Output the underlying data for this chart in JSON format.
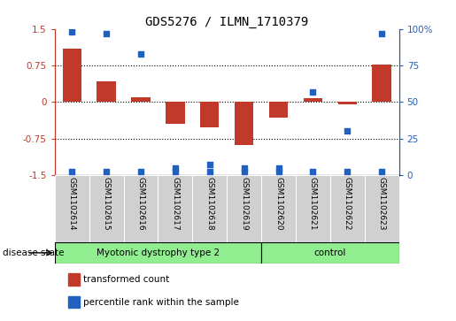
{
  "title": "GDS5276 / ILMN_1710379",
  "samples": [
    "GSM1102614",
    "GSM1102615",
    "GSM1102616",
    "GSM1102617",
    "GSM1102618",
    "GSM1102619",
    "GSM1102620",
    "GSM1102621",
    "GSM1102622",
    "GSM1102623"
  ],
  "transformed_count": [
    1.1,
    0.42,
    0.1,
    -0.45,
    -0.52,
    -0.88,
    -0.32,
    0.07,
    -0.05,
    0.77
  ],
  "percentile_rank": [
    98,
    97,
    83,
    5,
    7,
    5,
    5,
    57,
    30,
    97
  ],
  "ylim_left": [
    -1.5,
    1.5
  ],
  "ylim_right": [
    0,
    100
  ],
  "yticks_left": [
    -1.5,
    -0.75,
    0,
    0.75,
    1.5
  ],
  "yticks_right": [
    0,
    25,
    50,
    75,
    100
  ],
  "yticklabels_right": [
    "0",
    "25",
    "50",
    "75",
    "100%"
  ],
  "hlines": [
    0.75,
    0,
    -0.75
  ],
  "bar_color": "#c0392b",
  "dot_color": "#2060c0",
  "group1_label": "Myotonic dystrophy type 2",
  "group2_label": "control",
  "group1_count": 6,
  "group2_count": 4,
  "group_color": "#90ee90",
  "label_bg_color": "#d0d0d0",
  "disease_state_label": "disease state",
  "legend_bar_label": "transformed count",
  "legend_dot_label": "percentile rank within the sample",
  "ytick_left_color": "#c0392b",
  "ytick_right_color": "#2060c0",
  "bg_color": "#ffffff"
}
